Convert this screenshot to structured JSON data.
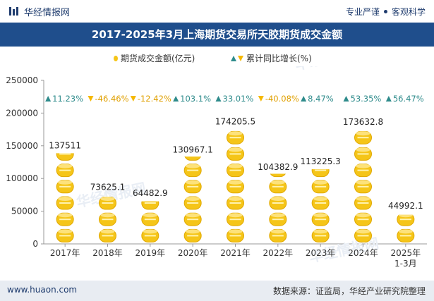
{
  "header": {
    "brand": "华经情报网",
    "slogan_left": "专业严谨",
    "slogan_right": "客观科学"
  },
  "colors": {
    "brand_blue": "#1f4e8c",
    "coin_gold": "#f5c518",
    "growth_up": "#2e8b8b",
    "growth_down": "#f5b800"
  },
  "footer": {
    "website": "www.huaon.com",
    "source": "数据来源：证监局，华经产业研究院整理"
  },
  "chart_data": {
    "type": "bar",
    "title": "2017-2025年3月上海期货交易所天胶期货成交金额",
    "categories": [
      "2017年",
      "2018年",
      "2019年",
      "2020年",
      "2021年",
      "2022年",
      "2023年",
      "2024年",
      "2025年\n1-3月"
    ],
    "series": [
      {
        "name": "期货成交金额(亿元)",
        "values": [
          137511,
          73625.1,
          64482.9,
          130967.1,
          174205.5,
          104382.9,
          113225.3,
          173632.8,
          44992.1
        ],
        "labels": [
          "137511",
          "73625.1",
          "64482.9",
          "130967.1",
          "174205.5",
          "104382.9",
          "113225.3",
          "173632.8",
          "44992.1"
        ]
      },
      {
        "name": "累计同比增长(%)",
        "values": [
          11.23,
          -46.46,
          -12.42,
          103.1,
          33.01,
          -40.08,
          8.47,
          53.35,
          56.47
        ],
        "labels": [
          "11.23%",
          "-46.46%",
          "-12.42%",
          "103.1%",
          "33.01%",
          "-40.08%",
          "8.47%",
          "53.35%",
          "56.47%"
        ]
      }
    ],
    "ylim": [
      0,
      250000
    ],
    "yticks": [
      0,
      50000,
      100000,
      150000,
      200000,
      250000
    ],
    "coin_unit": 25000,
    "legend_position": "top-center",
    "grid": false
  }
}
